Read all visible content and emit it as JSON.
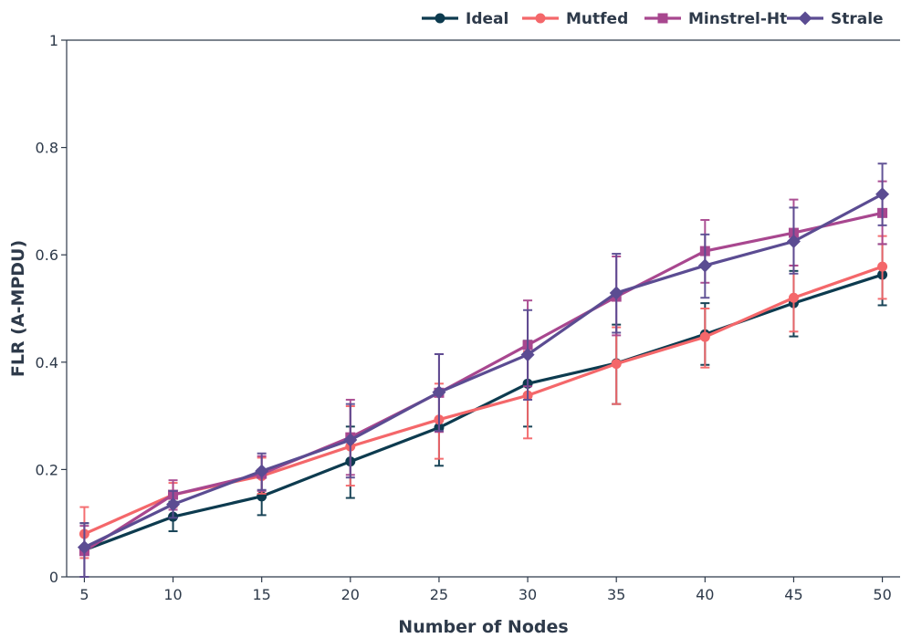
{
  "chart_data": {
    "type": "line",
    "xlabel": "Number of Nodes",
    "ylabel": "FLR (A-MPDU)",
    "x": [
      5,
      10,
      15,
      20,
      25,
      30,
      35,
      40,
      45,
      50
    ],
    "xlim": [
      4,
      51
    ],
    "ylim": [
      0,
      1
    ],
    "yticks": [
      0,
      0.2,
      0.4,
      0.6,
      0.8,
      1
    ],
    "ytick_labels": [
      "0",
      "0.2",
      "0.4",
      "0.6",
      "0.8",
      "1"
    ],
    "xtick_labels": [
      "5",
      "10",
      "15",
      "20",
      "25",
      "30",
      "35",
      "40",
      "45",
      "50"
    ],
    "grid": false,
    "legend_position": "top-right",
    "series": [
      {
        "name": "Ideal",
        "color": "#0d3b4f",
        "marker": "circle",
        "values": [
          0.05,
          0.112,
          0.15,
          0.215,
          0.278,
          0.36,
          0.398,
          0.452,
          0.51,
          0.563
        ],
        "lower": [
          0.0,
          0.085,
          0.115,
          0.147,
          0.207,
          0.28,
          0.322,
          0.395,
          0.448,
          0.506
        ],
        "upper": [
          0.1,
          0.14,
          0.185,
          0.28,
          0.348,
          0.44,
          0.47,
          0.51,
          0.57,
          0.62
        ]
      },
      {
        "name": "Mutfed",
        "color": "#f4676a",
        "marker": "circle",
        "values": [
          0.08,
          0.153,
          0.188,
          0.243,
          0.293,
          0.338,
          0.397,
          0.447,
          0.52,
          0.578
        ],
        "lower": [
          0.035,
          0.13,
          0.155,
          0.17,
          0.22,
          0.258,
          0.322,
          0.39,
          0.457,
          0.518
        ],
        "upper": [
          0.13,
          0.175,
          0.222,
          0.318,
          0.36,
          0.42,
          0.465,
          0.5,
          0.58,
          0.635
        ]
      },
      {
        "name": "Minstrel-Ht",
        "color": "#a8478f",
        "marker": "square",
        "values": [
          0.048,
          0.153,
          0.192,
          0.26,
          0.343,
          0.432,
          0.522,
          0.607,
          0.641,
          0.678
        ],
        "lower": [
          0.0,
          0.125,
          0.16,
          0.19,
          0.27,
          0.355,
          0.45,
          0.548,
          0.58,
          0.62
        ],
        "upper": [
          0.095,
          0.18,
          0.225,
          0.33,
          0.415,
          0.515,
          0.597,
          0.665,
          0.703,
          0.737
        ]
      },
      {
        "name": "Strale",
        "color": "#5b4c92",
        "marker": "diamond",
        "values": [
          0.055,
          0.135,
          0.197,
          0.255,
          0.344,
          0.414,
          0.529,
          0.58,
          0.625,
          0.713
        ],
        "lower": [
          0.0,
          0.11,
          0.162,
          0.185,
          0.272,
          0.33,
          0.455,
          0.52,
          0.565,
          0.655
        ],
        "upper": [
          0.1,
          0.16,
          0.23,
          0.322,
          0.415,
          0.497,
          0.602,
          0.638,
          0.688,
          0.77
        ]
      }
    ]
  }
}
